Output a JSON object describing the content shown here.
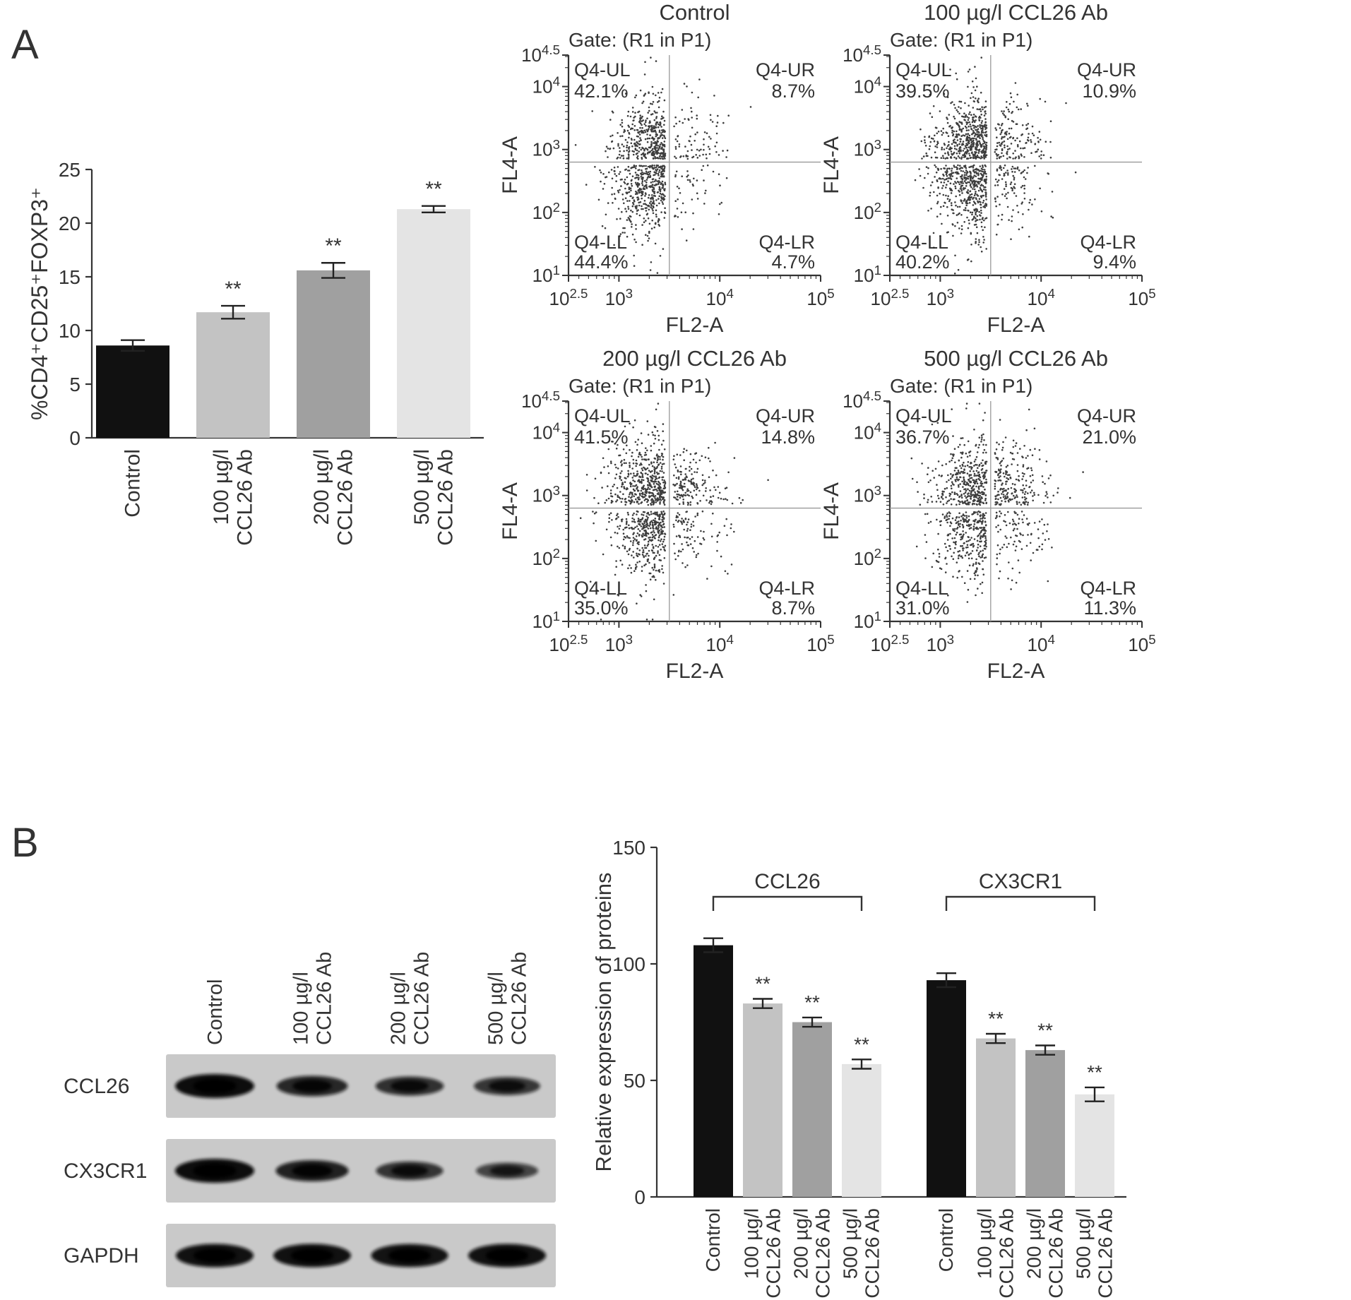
{
  "figure": {
    "panel_a_label": "A",
    "panel_b_label": "B"
  },
  "chart_data": [
    {
      "id": "treg_bar",
      "type": "bar",
      "title": "",
      "ylabel": "%CD4⁺CD25⁺FOXP3⁺",
      "ylim": [
        0,
        25
      ],
      "yticks": [
        0,
        5,
        10,
        15,
        20,
        25
      ],
      "categories": [
        [
          "Control"
        ],
        [
          "100 µg/l",
          "CCL26 Ab"
        ],
        [
          "200 µg/l",
          "CCL26 Ab"
        ],
        [
          "500 µg/l",
          "CCL26 Ab"
        ]
      ],
      "values": [
        8.6,
        11.7,
        15.6,
        21.3
      ],
      "errors": [
        0.5,
        0.6,
        0.7,
        0.3
      ],
      "significance": [
        "",
        "**",
        "**",
        "**"
      ],
      "bar_colors": [
        "#111111",
        "#c3c3c3",
        "#a0a0a0",
        "#e4e4e4"
      ]
    },
    {
      "id": "flow_control",
      "type": "scatter",
      "title": "Control",
      "gate_label": "Gate: (R1 in P1)",
      "xlabel": "FL2-A",
      "ylabel": "FL4-A",
      "x_log_range": [
        2.5,
        5
      ],
      "y_log_range": [
        1,
        4.5
      ],
      "x_major_ticks": [
        2.5,
        3,
        4,
        5
      ],
      "y_major_ticks": [
        1,
        2,
        3,
        4,
        4.5
      ],
      "quadrant_divider_log": {
        "x": 3.5,
        "y": 2.8
      },
      "quadrants": [
        {
          "name": "Q4-UL",
          "pct": "42.1%"
        },
        {
          "name": "Q4-UR",
          "pct": "8.7%"
        },
        {
          "name": "Q4-LL",
          "pct": "44.4%"
        },
        {
          "name": "Q4-LR",
          "pct": "4.7%"
        }
      ],
      "n_points": 1000,
      "seed": 7
    },
    {
      "id": "flow_100",
      "type": "scatter",
      "title": "100 µg/l CCL26 Ab",
      "gate_label": "Gate: (R1 in P1)",
      "xlabel": "FL2-A",
      "ylabel": "FL4-A",
      "x_log_range": [
        2.5,
        5
      ],
      "y_log_range": [
        1,
        4.5
      ],
      "x_major_ticks": [
        2.5,
        3,
        4,
        5
      ],
      "y_major_ticks": [
        1,
        2,
        3,
        4,
        4.5
      ],
      "quadrant_divider_log": {
        "x": 3.5,
        "y": 2.8
      },
      "quadrants": [
        {
          "name": "Q4-UL",
          "pct": "39.5%"
        },
        {
          "name": "Q4-UR",
          "pct": "10.9%"
        },
        {
          "name": "Q4-LL",
          "pct": "40.2%"
        },
        {
          "name": "Q4-LR",
          "pct": "9.4%"
        }
      ],
      "n_points": 1250,
      "seed": 13
    },
    {
      "id": "flow_200",
      "type": "scatter",
      "title": "200 µg/l CCL26 Ab",
      "gate_label": "Gate: (R1 in P1)",
      "xlabel": "FL2-A",
      "ylabel": "FL4-A",
      "x_log_range": [
        2.5,
        5
      ],
      "y_log_range": [
        1,
        4.5
      ],
      "x_major_ticks": [
        2.5,
        3,
        4,
        5
      ],
      "y_major_ticks": [
        1,
        2,
        3,
        4,
        4.5
      ],
      "quadrant_divider_log": {
        "x": 3.5,
        "y": 2.8
      },
      "quadrants": [
        {
          "name": "Q4-UL",
          "pct": "41.5%"
        },
        {
          "name": "Q4-UR",
          "pct": "14.8%"
        },
        {
          "name": "Q4-LL",
          "pct": "35.0%"
        },
        {
          "name": "Q4-LR",
          "pct": "8.7%"
        }
      ],
      "n_points": 1150,
      "seed": 29
    },
    {
      "id": "flow_500",
      "type": "scatter",
      "title": "500 µg/l CCL26 Ab",
      "gate_label": "Gate: (R1 in P1)",
      "xlabel": "FL2-A",
      "ylabel": "FL4-A",
      "x_log_range": [
        2.5,
        5
      ],
      "y_log_range": [
        1,
        4.5
      ],
      "x_major_ticks": [
        2.5,
        3,
        4,
        5
      ],
      "y_major_ticks": [
        1,
        2,
        3,
        4,
        4.5
      ],
      "quadrant_divider_log": {
        "x": 3.5,
        "y": 2.8
      },
      "quadrants": [
        {
          "name": "Q4-UL",
          "pct": "36.7%"
        },
        {
          "name": "Q4-UR",
          "pct": "21.0%"
        },
        {
          "name": "Q4-LL",
          "pct": "31.0%"
        },
        {
          "name": "Q4-LR",
          "pct": "11.3%"
        }
      ],
      "n_points": 1050,
      "seed": 43
    },
    {
      "id": "protein_bar",
      "type": "bar",
      "title": "",
      "ylabel": "Relative expression of proteins",
      "ylim": [
        0,
        150
      ],
      "yticks": [
        0,
        50,
        100,
        150
      ],
      "categories": [
        [
          "Control"
        ],
        [
          "100 µg/l",
          "CCL26 Ab"
        ],
        [
          "200 µg/l",
          "CCL26 Ab"
        ],
        [
          "500 µg/l",
          "CCL26 Ab"
        ]
      ],
      "series": [
        {
          "name": "CCL26",
          "values": [
            108,
            83,
            75,
            57
          ],
          "errors": [
            3,
            2,
            2,
            2
          ],
          "significance": [
            "",
            "**",
            "**",
            "**"
          ]
        },
        {
          "name": "CX3CR1",
          "values": [
            93,
            68,
            63,
            44
          ],
          "errors": [
            3,
            2,
            2,
            3
          ],
          "significance": [
            "",
            "**",
            "**",
            "**"
          ]
        }
      ],
      "bar_colors": [
        "#111111",
        "#c3c3c3",
        "#a0a0a0",
        "#e4e4e4"
      ]
    }
  ],
  "blot": {
    "lane_labels": [
      [
        "Control"
      ],
      [
        "100 µg/l",
        "CCL26 Ab"
      ],
      [
        "200 µg/l",
        "CCL26 Ab"
      ],
      [
        "500 µg/l",
        "CCL26 Ab"
      ]
    ],
    "rows": [
      {
        "label": "CCL26",
        "intensities": [
          1.0,
          0.72,
          0.62,
          0.55
        ]
      },
      {
        "label": "CX3CR1",
        "intensities": [
          1.0,
          0.78,
          0.58,
          0.4
        ]
      },
      {
        "label": "GAPDH",
        "intensities": [
          0.95,
          0.95,
          0.93,
          0.95
        ]
      }
    ]
  }
}
